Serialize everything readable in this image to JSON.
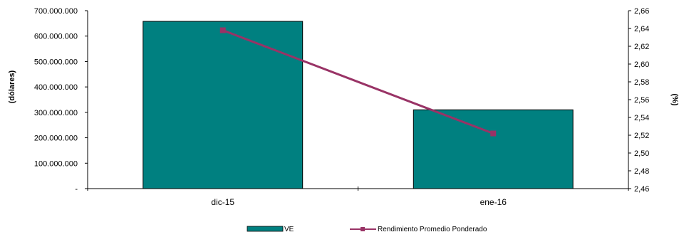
{
  "chart_data": {
    "type": "bar",
    "categories": [
      "dic-15",
      "ene-16"
    ],
    "series": [
      {
        "name": "VE",
        "type": "bar",
        "axis": "left",
        "values": [
          658000000,
          310000000
        ],
        "color": "#008080"
      },
      {
        "name": "Rendimiento Promedio Ponderado",
        "type": "line",
        "axis": "right",
        "values": [
          2.638,
          2.522
        ],
        "color": "#993366"
      }
    ],
    "ylabel": "(dólares)",
    "y2label": "(%)",
    "ylim": [
      0,
      700000000
    ],
    "y2lim": [
      2.46,
      2.66
    ],
    "y_ticks": [
      "-",
      "100.000.000",
      "200.000.000",
      "300.000.000",
      "400.000.000",
      "500.000.000",
      "600.000.000",
      "700.000.000"
    ],
    "y2_ticks": [
      "2,46",
      "2,48",
      "2,50",
      "2,52",
      "2,54",
      "2,56",
      "2,58",
      "2,60",
      "2,62",
      "2,64",
      "2,66"
    ],
    "grid": false,
    "legend_position": "bottom"
  }
}
